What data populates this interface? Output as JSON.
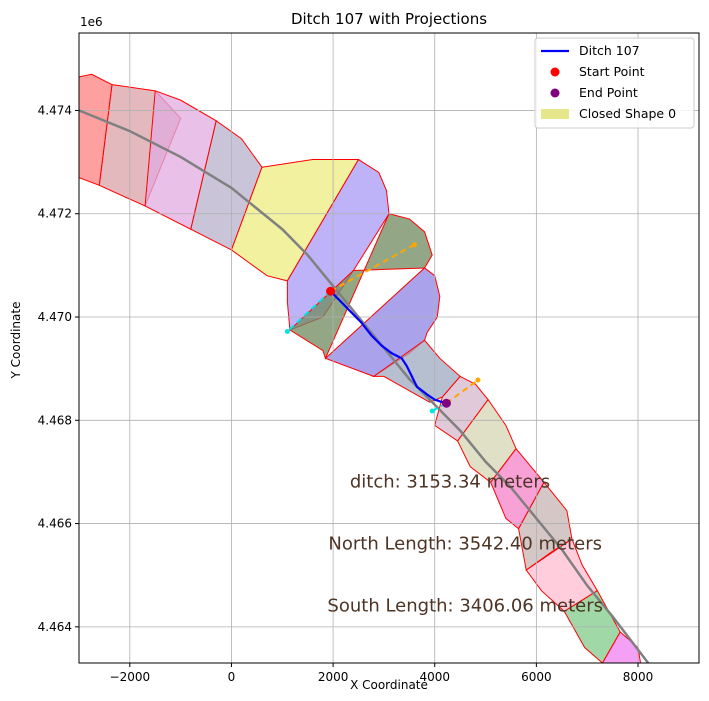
{
  "chart_data": {
    "type": "line",
    "title": "Ditch 107 with Projections",
    "xlabel": "X Coordinate",
    "ylabel": "Y Coordinate",
    "y_offset_label": "1e6",
    "xlim": [
      -3000,
      9200
    ],
    "ylim": [
      4463300,
      4475500
    ],
    "x_ticks": [
      -2000,
      0,
      2000,
      4000,
      6000,
      8000
    ],
    "x_tick_labels": [
      "−2000",
      "0",
      "2000",
      "4000",
      "6000",
      "8000"
    ],
    "y_ticks": [
      4464000,
      4466000,
      4468000,
      4470000,
      4472000,
      4474000
    ],
    "y_tick_labels": [
      "4.464",
      "4.466",
      "4.468",
      "4.470",
      "4.472",
      "4.474"
    ],
    "grid": true,
    "legend_position": "top-right",
    "legend": [
      {
        "label": "Ditch 107",
        "kind": "line",
        "color": "#0000ff"
      },
      {
        "label": "Start Point",
        "kind": "point",
        "color": "#ff0000"
      },
      {
        "label": "End Point",
        "kind": "point",
        "color": "#800080"
      },
      {
        "label": "Closed Shape 0",
        "kind": "patch",
        "color": "#e6e68a"
      }
    ],
    "centerline": {
      "color": "#808080",
      "points": [
        [
          -3000,
          4474000
        ],
        [
          -2000,
          4473600
        ],
        [
          -1000,
          4473100
        ],
        [
          0,
          4472500
        ],
        [
          1000,
          4471700
        ],
        [
          1500,
          4471200
        ],
        [
          2000,
          4470600
        ],
        [
          2500,
          4470000
        ],
        [
          3000,
          4469400
        ],
        [
          3500,
          4468800
        ],
        [
          4000,
          4468300
        ],
        [
          4500,
          4467800
        ],
        [
          5000,
          4467200
        ],
        [
          5500,
          4466700
        ],
        [
          6000,
          4466100
        ],
        [
          6500,
          4465500
        ],
        [
          7000,
          4464800
        ],
        [
          7500,
          4464200
        ],
        [
          8200,
          4463300
        ]
      ]
    },
    "ditch": {
      "name": "Ditch 107",
      "color": "#0000ff",
      "points": [
        [
          1950,
          4470500
        ],
        [
          2250,
          4470200
        ],
        [
          2550,
          4469900
        ],
        [
          2750,
          4469650
        ],
        [
          2950,
          4469450
        ],
        [
          3150,
          4469300
        ],
        [
          3350,
          4469200
        ],
        [
          3450,
          4469050
        ],
        [
          3550,
          4468850
        ],
        [
          3650,
          4468650
        ],
        [
          3850,
          4468500
        ],
        [
          4000,
          4468400
        ],
        [
          4150,
          4468350
        ],
        [
          4230,
          4468330
        ]
      ]
    },
    "start_point": {
      "x": 1950,
      "y": 4470500,
      "color": "#ff0000"
    },
    "end_point": {
      "x": 4230,
      "y": 4468330,
      "color": "#800080"
    },
    "projections": [
      {
        "color": "#ffa500",
        "points": [
          [
            1950,
            4470500
          ],
          [
            3600,
            4471400
          ]
        ]
      },
      {
        "color": "#00e5e5",
        "points": [
          [
            1950,
            4470500
          ],
          [
            1100,
            4469720
          ]
        ]
      },
      {
        "color": "#ffa500",
        "points": [
          [
            4230,
            4468330
          ],
          [
            4850,
            4468780
          ]
        ]
      },
      {
        "color": "#00e5e5",
        "points": [
          [
            4230,
            4468330
          ],
          [
            3950,
            4468180
          ]
        ]
      }
    ],
    "polygons": [
      {
        "fill": "#ff8080",
        "points": [
          [
            -3000,
            4474650
          ],
          [
            -2750,
            4474700
          ],
          [
            -2350,
            4474500
          ],
          [
            -2600,
            4472550
          ],
          [
            -3000,
            4472700
          ]
        ]
      },
      {
        "fill": "#d9a1a8",
        "points": [
          [
            -2350,
            4474500
          ],
          [
            -1500,
            4474380
          ],
          [
            -1000,
            4473850
          ],
          [
            -1700,
            4472150
          ],
          [
            -2600,
            4472550
          ]
        ]
      },
      {
        "fill": "#e0abe0",
        "points": [
          [
            -1500,
            4474380
          ],
          [
            -1000,
            4474200
          ],
          [
            -300,
            4473800
          ],
          [
            -800,
            4471700
          ],
          [
            -1700,
            4472150
          ]
        ]
      },
      {
        "fill": "#b8b0cc",
        "points": [
          [
            -300,
            4473800
          ],
          [
            200,
            4473450
          ],
          [
            600,
            4472900
          ],
          [
            0,
            4471300
          ],
          [
            -800,
            4471700
          ]
        ]
      },
      {
        "fill": "#ecec80",
        "points": [
          [
            600,
            4472900
          ],
          [
            1600,
            4473050
          ],
          [
            2500,
            4473050
          ],
          [
            1100,
            4470700
          ],
          [
            700,
            4470800
          ],
          [
            0,
            4471300
          ]
        ]
      },
      {
        "fill": "#a898f5",
        "points": [
          [
            2500,
            4473050
          ],
          [
            2900,
            4472800
          ],
          [
            3050,
            4472450
          ],
          [
            3100,
            4472000
          ],
          [
            2400,
            4470900
          ],
          [
            1800,
            4470000
          ],
          [
            1150,
            4469750
          ],
          [
            1100,
            4470300
          ],
          [
            1100,
            4470700
          ]
        ]
      },
      {
        "fill": "#6f8a5e",
        "points": [
          [
            3100,
            4472000
          ],
          [
            3500,
            4471900
          ],
          [
            3800,
            4471650
          ],
          [
            3950,
            4471200
          ],
          [
            3800,
            4470950
          ],
          [
            2400,
            4470900
          ],
          [
            1150,
            4469750
          ],
          [
            1800,
            4469350
          ],
          [
            1850,
            4469200
          ]
        ]
      },
      {
        "fill": "#8e84e6",
        "points": [
          [
            3800,
            4470950
          ],
          [
            4000,
            4470800
          ],
          [
            4100,
            4470400
          ],
          [
            4050,
            4470000
          ],
          [
            3850,
            4469700
          ],
          [
            3800,
            4469550
          ],
          [
            3500,
            4469300
          ],
          [
            2800,
            4468850
          ],
          [
            1850,
            4469200
          ]
        ]
      },
      {
        "fill": "#9eaac0",
        "points": [
          [
            3800,
            4469550
          ],
          [
            4100,
            4469200
          ],
          [
            4500,
            4468850
          ],
          [
            4150,
            4468450
          ],
          [
            3900,
            4468350
          ],
          [
            3000,
            4468850
          ],
          [
            2800,
            4468850
          ]
        ]
      },
      {
        "fill": "#d6b8cc",
        "points": [
          [
            4500,
            4468850
          ],
          [
            4800,
            4468700
          ],
          [
            5050,
            4468400
          ],
          [
            4450,
            4467600
          ],
          [
            4000,
            4467900
          ],
          [
            4150,
            4468450
          ]
        ]
      },
      {
        "fill": "#d6d6b4",
        "points": [
          [
            5050,
            4468400
          ],
          [
            5400,
            4467900
          ],
          [
            5600,
            4467450
          ],
          [
            5100,
            4466800
          ],
          [
            4700,
            4467100
          ],
          [
            4450,
            4467600
          ]
        ]
      },
      {
        "fill": "#f582c8",
        "points": [
          [
            5600,
            4467450
          ],
          [
            6150,
            4466800
          ],
          [
            5650,
            4465900
          ],
          [
            5400,
            4466100
          ],
          [
            5100,
            4466800
          ]
        ]
      },
      {
        "fill": "#c8b4b4",
        "points": [
          [
            6150,
            4466800
          ],
          [
            6600,
            4466250
          ],
          [
            6700,
            4465700
          ],
          [
            6300,
            4465450
          ],
          [
            5800,
            4465100
          ],
          [
            5650,
            4465900
          ]
        ]
      },
      {
        "fill": "#ffbcd0",
        "points": [
          [
            6700,
            4465700
          ],
          [
            6900,
            4465200
          ],
          [
            7200,
            4464700
          ],
          [
            6550,
            4464300
          ],
          [
            6100,
            4464700
          ],
          [
            5800,
            4465100
          ]
        ]
      },
      {
        "fill": "#80cc8a",
        "points": [
          [
            7200,
            4464700
          ],
          [
            7650,
            4463900
          ],
          [
            7300,
            4463300
          ],
          [
            6950,
            4463600
          ],
          [
            6550,
            4464300
          ]
        ]
      },
      {
        "fill": "#f080f0",
        "points": [
          [
            7650,
            4463900
          ],
          [
            8000,
            4463600
          ],
          [
            8050,
            4463300
          ],
          [
            7300,
            4463300
          ]
        ]
      }
    ],
    "annotations": [
      {
        "text": "ditch: 3153.34 meters",
        "x": 4300,
        "y": 4466700
      },
      {
        "text": "North Length: 3542.40 meters",
        "x": 4600,
        "y": 4465500
      },
      {
        "text": "South Length: 3406.06 meters",
        "x": 4600,
        "y": 4464300
      }
    ]
  }
}
